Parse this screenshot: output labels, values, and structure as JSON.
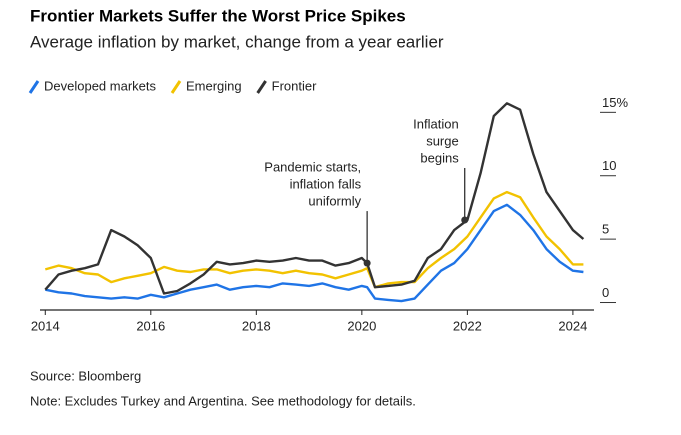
{
  "chart_data": {
    "type": "line",
    "title": "Frontier Markets Suffer the Worst Price Spikes",
    "subtitle": "Average inflation by market, change from a year earlier",
    "source": "Source: Bloomberg",
    "note": "Note: Excludes Turkey and Argentina. See methodology for details.",
    "x": [
      2014,
      2014.25,
      2014.5,
      2014.75,
      2015,
      2015.25,
      2015.5,
      2015.75,
      2016,
      2016.25,
      2016.5,
      2016.75,
      2017,
      2017.25,
      2017.5,
      2017.75,
      2018,
      2018.25,
      2018.5,
      2018.75,
      2019,
      2019.25,
      2019.5,
      2019.75,
      2020,
      2020.1,
      2020.25,
      2020.5,
      2020.75,
      2021,
      2021.25,
      2021.5,
      2021.75,
      2022,
      2022.25,
      2022.5,
      2022.75,
      2023,
      2023.25,
      2023.5,
      2023.75,
      2024,
      2024.2
    ],
    "series": [
      {
        "name": "Developed markets",
        "color": "#1f74e6",
        "values": [
          0.3,
          0.1,
          0.0,
          -0.2,
          -0.3,
          -0.4,
          -0.3,
          -0.4,
          -0.1,
          -0.3,
          0.0,
          0.3,
          0.5,
          0.7,
          0.3,
          0.5,
          0.6,
          0.5,
          0.8,
          0.7,
          0.6,
          0.8,
          0.5,
          0.3,
          0.6,
          0.5,
          -0.4,
          -0.5,
          -0.6,
          -0.4,
          0.7,
          1.8,
          2.4,
          3.5,
          5.0,
          6.5,
          7.0,
          6.2,
          5.0,
          3.5,
          2.5,
          1.8,
          1.7
        ]
      },
      {
        "name": "Emerging",
        "color": "#f2c200",
        "values": [
          1.9,
          2.2,
          2.0,
          1.6,
          1.5,
          0.9,
          1.2,
          1.4,
          1.6,
          2.1,
          1.8,
          1.7,
          1.9,
          1.9,
          1.6,
          1.8,
          1.9,
          1.8,
          1.6,
          1.8,
          1.6,
          1.5,
          1.2,
          1.5,
          1.8,
          2.0,
          0.5,
          0.8,
          0.9,
          0.9,
          2.0,
          2.8,
          3.5,
          4.5,
          6.0,
          7.5,
          8.0,
          7.6,
          6.0,
          4.5,
          3.5,
          2.3,
          2.3
        ]
      },
      {
        "name": "Frontier",
        "color": "#333333",
        "values": [
          0.3,
          1.5,
          1.8,
          2.0,
          2.3,
          5.0,
          4.5,
          3.8,
          2.8,
          0.0,
          0.2,
          0.8,
          1.5,
          2.5,
          2.3,
          2.4,
          2.6,
          2.5,
          2.6,
          2.8,
          2.6,
          2.6,
          2.2,
          2.4,
          2.8,
          2.4,
          0.5,
          0.6,
          0.7,
          1.0,
          2.8,
          3.5,
          5.0,
          5.8,
          9.5,
          14.0,
          15.0,
          14.5,
          11.0,
          8.0,
          6.5,
          5.0,
          4.3
        ]
      }
    ],
    "annotations": [
      {
        "lines": [
          "Pandemic starts,",
          "inflation falls",
          "uniformly"
        ],
        "x": 2020.1,
        "y": 2.4
      },
      {
        "lines": [
          "Inflation",
          "surge",
          "begins"
        ],
        "x": 2021.95,
        "y": 5.8
      }
    ],
    "xlim": [
      2013.9,
      2024.4
    ],
    "xticks": [
      2014,
      2016,
      2018,
      2020,
      2022,
      2024
    ],
    "ylim": [
      -1.3,
      15.5
    ],
    "yticks": [
      0,
      5,
      10,
      {
        "value": 15,
        "label": "15%"
      }
    ],
    "grid": false
  }
}
